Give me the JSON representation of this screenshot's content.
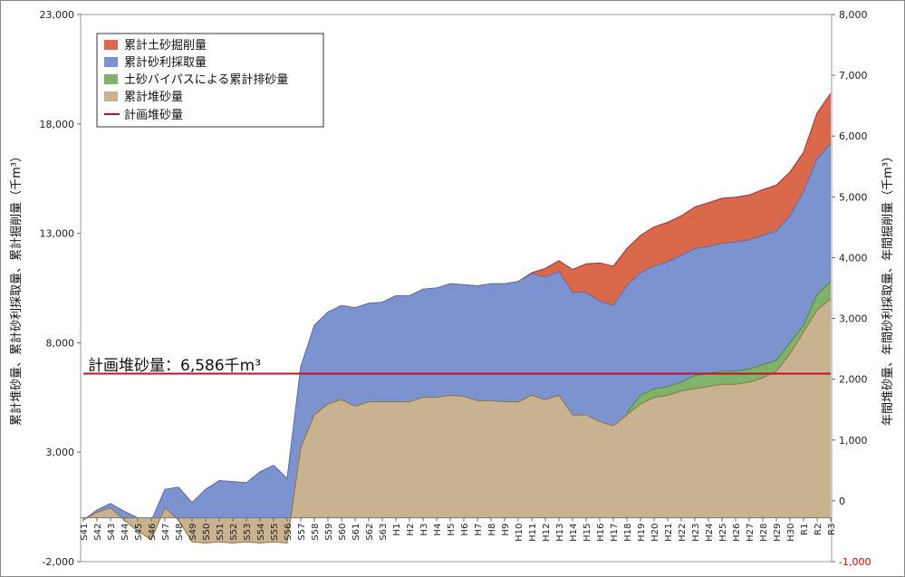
{
  "chart_data": {
    "type": "area",
    "y_left": {
      "label": "累計堆砂量、累計砂利採取量、累計掘削量（千m³）",
      "ylim": [
        -2000,
        23000
      ],
      "ticks": [
        "-2,000",
        "3,000",
        "8,000",
        "13,000",
        "18,000",
        "23,000"
      ]
    },
    "y_right": {
      "label": "年間堆砂量、年間砂利採取量、年間掘削量（千m³）",
      "ylim": [
        -1000,
        8000
      ],
      "ticks": [
        "-1,000",
        "0",
        "1,000",
        "2,000",
        "3,000",
        "4,000",
        "5,000",
        "6,000",
        "7,000",
        "8,000"
      ],
      "tick_color_negative": "#cc0000"
    },
    "categories": [
      "S41",
      "S42",
      "S43",
      "S44",
      "S45",
      "S46",
      "S47",
      "S48",
      "S49",
      "S50",
      "S51",
      "S52",
      "S53",
      "S54",
      "S55",
      "S56",
      "S57",
      "S58",
      "S59",
      "S60",
      "S61",
      "S62",
      "S63",
      "H1",
      "H2",
      "H3",
      "H4",
      "H5",
      "H6",
      "H7",
      "H8",
      "H9",
      "H10",
      "H11",
      "H12",
      "H13",
      "H14",
      "H15",
      "H16",
      "H17",
      "H18",
      "H19",
      "H20",
      "H21",
      "H22",
      "H23",
      "H24",
      "H25",
      "H26",
      "H27",
      "H28",
      "H29",
      "H30",
      "R1",
      "R2",
      "R3"
    ],
    "series": [
      {
        "name": "累計土砂掘削量",
        "color": "#d9694a",
        "values": [
          -100,
          350,
          650,
          300,
          0,
          -150,
          1300,
          1400,
          700,
          1300,
          1700,
          1650,
          1600,
          2100,
          2400,
          1800,
          6900,
          8800,
          9400,
          9700,
          9600,
          9800,
          9850,
          10150,
          10150,
          10450,
          10500,
          10700,
          10650,
          10600,
          10700,
          10700,
          10800,
          11200,
          11400,
          11750,
          11350,
          11600,
          11650,
          11500,
          12300,
          12900,
          13300,
          13500,
          13800,
          14200,
          14400,
          14600,
          14650,
          14750,
          15000,
          15200,
          15800,
          16700,
          18500,
          19400
        ]
      },
      {
        "name": "累計砂利採取量",
        "color": "#7c93d0",
        "values": [
          -100,
          350,
          650,
          300,
          0,
          -150,
          1300,
          1400,
          700,
          1300,
          1700,
          1650,
          1600,
          2100,
          2400,
          1800,
          6900,
          8800,
          9400,
          9700,
          9600,
          9800,
          9850,
          10150,
          10150,
          10450,
          10500,
          10700,
          10650,
          10600,
          10700,
          10700,
          10800,
          11150,
          11000,
          11250,
          10300,
          10300,
          9900,
          9700,
          10600,
          11200,
          11500,
          11700,
          12000,
          12300,
          12400,
          12550,
          12600,
          12700,
          12900,
          13100,
          13800,
          14900,
          16400,
          17100
        ]
      },
      {
        "name": "土砂バイパスによる累計排砂量",
        "color": "#7fb26a",
        "values": [
          null,
          null,
          null,
          null,
          null,
          null,
          null,
          null,
          null,
          null,
          null,
          null,
          null,
          null,
          null,
          null,
          null,
          null,
          null,
          null,
          null,
          null,
          null,
          null,
          null,
          null,
          null,
          null,
          null,
          null,
          null,
          null,
          null,
          null,
          null,
          null,
          null,
          null,
          null,
          null,
          4800,
          5600,
          5900,
          6000,
          6200,
          6500,
          6600,
          6700,
          6700,
          6800,
          7000,
          7200,
          8000,
          8800,
          10200,
          10800
        ]
      },
      {
        "name": "累計堆砂量",
        "color": "#c8b28f",
        "values": [
          -100,
          250,
          450,
          -100,
          -600,
          -1000,
          450,
          -100,
          -1100,
          -1150,
          -1100,
          -1150,
          -1100,
          -1150,
          -1100,
          -1150,
          3200,
          4700,
          5200,
          5400,
          5100,
          5300,
          5300,
          5300,
          5300,
          5500,
          5500,
          5600,
          5550,
          5350,
          5350,
          5300,
          5300,
          5600,
          5400,
          5600,
          4700,
          4700,
          4400,
          4200,
          4700,
          5200,
          5500,
          5600,
          5800,
          5900,
          6000,
          6100,
          6100,
          6200,
          6400,
          6700,
          7500,
          8500,
          9500,
          10000
        ]
      }
    ],
    "plan_line": {
      "name": "計画堆砂量",
      "value": 6586,
      "color": "#c0102b",
      "label": "計画堆砂量：6,586千m³"
    },
    "legend_placement": "top-left",
    "grid": false
  }
}
